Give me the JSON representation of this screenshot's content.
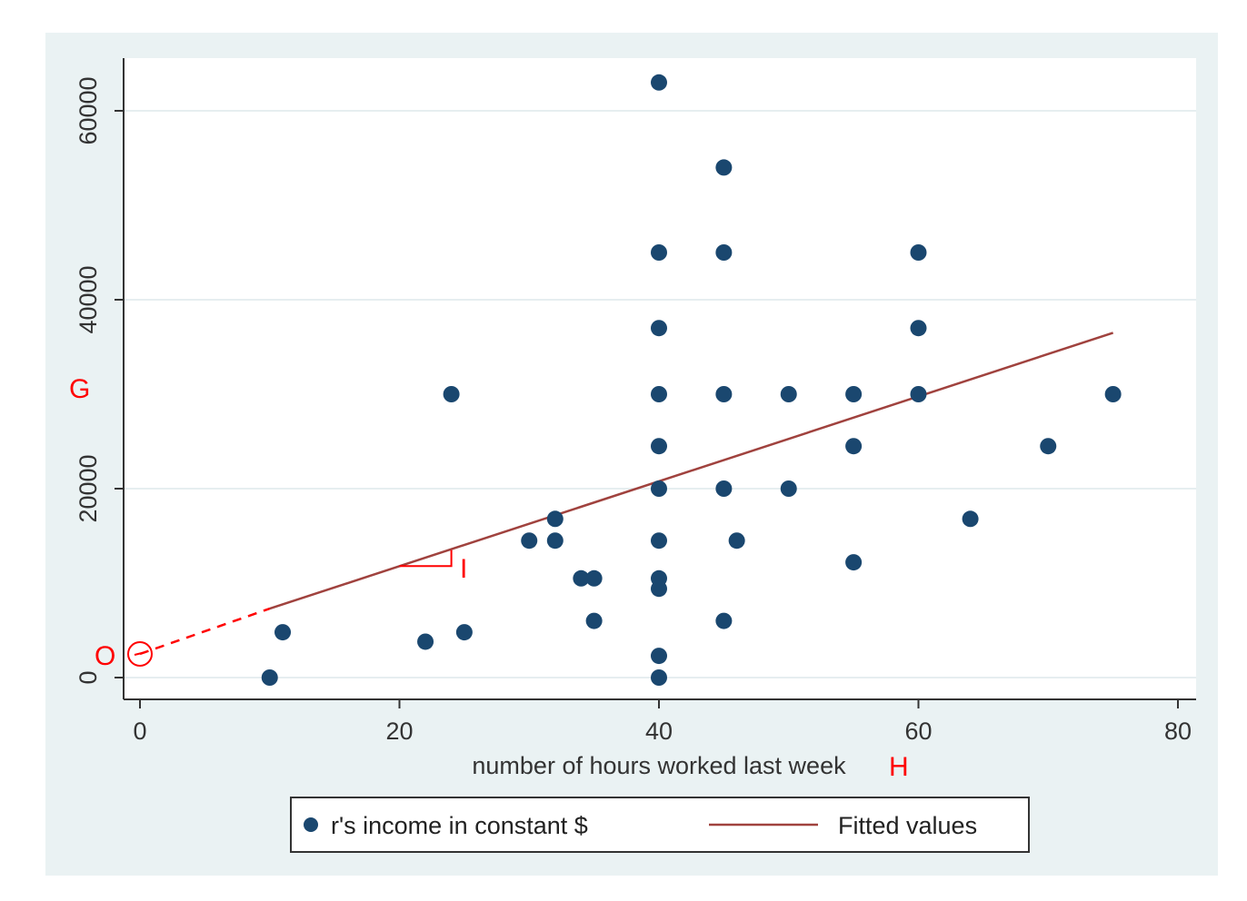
{
  "chart_data": {
    "type": "scatter",
    "xlabel": "number of hours worked last week",
    "ylabel": "",
    "xlim": [
      0,
      80
    ],
    "ylim": [
      0,
      65000
    ],
    "xticks": [
      "0",
      "20",
      "40",
      "60",
      "80"
    ],
    "yticks": [
      "0",
      "20000",
      "40000",
      "60000"
    ],
    "grid": true,
    "legend_position": "bottom",
    "series": [
      {
        "name": "r's income in constant $",
        "kind": "scatter",
        "color": "#1a476f",
        "points": [
          [
            10,
            0
          ],
          [
            11,
            4800
          ],
          [
            22,
            3800
          ],
          [
            24,
            30000
          ],
          [
            25,
            4800
          ],
          [
            30,
            14500
          ],
          [
            32,
            14500
          ],
          [
            32,
            16800
          ],
          [
            34,
            10500
          ],
          [
            35,
            10500
          ],
          [
            35,
            6000
          ],
          [
            40,
            63000
          ],
          [
            40,
            45000
          ],
          [
            40,
            37000
          ],
          [
            40,
            30000
          ],
          [
            40,
            24500
          ],
          [
            40,
            20000
          ],
          [
            40,
            14500
          ],
          [
            40,
            10500
          ],
          [
            40,
            9400
          ],
          [
            40,
            2300
          ],
          [
            40,
            0
          ],
          [
            45,
            54000
          ],
          [
            45,
            45000
          ],
          [
            45,
            30000
          ],
          [
            45,
            20000
          ],
          [
            45,
            6000
          ],
          [
            46,
            14500
          ],
          [
            50,
            30000
          ],
          [
            50,
            20000
          ],
          [
            55,
            30000
          ],
          [
            55,
            24500
          ],
          [
            55,
            12200
          ],
          [
            60,
            45000
          ],
          [
            60,
            37000
          ],
          [
            60,
            30000
          ],
          [
            64,
            16800
          ],
          [
            70,
            24500
          ],
          [
            75,
            30000
          ]
        ]
      },
      {
        "name": "Fitted values",
        "kind": "line",
        "color": "#a0423e",
        "x": [
          10,
          75
        ],
        "y": [
          7300,
          36500
        ]
      }
    ],
    "annotations": {
      "extension": {
        "x": [
          0,
          10
        ],
        "y": [
          2500,
          7300
        ],
        "color": "#ff0000"
      },
      "origin_circle": {
        "x": 0,
        "y": 2500,
        "color": "#ff0000"
      },
      "slope_triangle": {
        "x": [
          20,
          24,
          24
        ],
        "y": [
          11800,
          11800,
          13500
        ],
        "color": "#ff0000"
      },
      "labels": [
        {
          "text": "G",
          "at": "y-axis-margin"
        },
        {
          "text": "O",
          "at": "origin-circle"
        },
        {
          "text": "I",
          "at": "slope-triangle"
        },
        {
          "text": "H",
          "at": "after-x-axis-title"
        }
      ]
    }
  }
}
